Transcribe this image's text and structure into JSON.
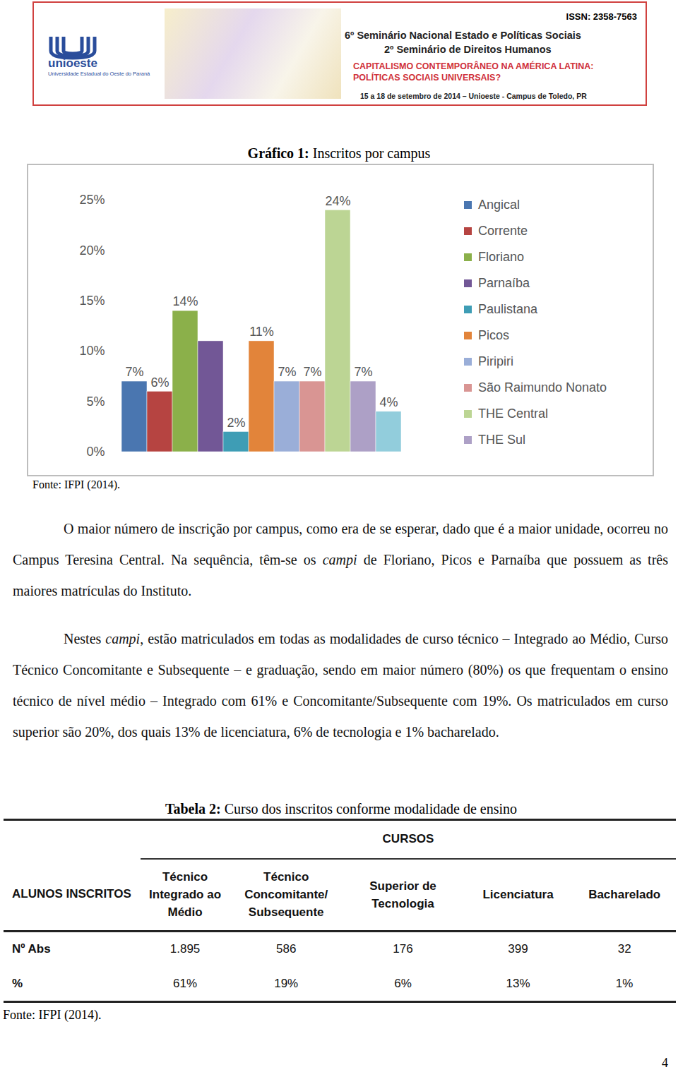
{
  "header": {
    "logo_name": "unioeste",
    "logo_subtitle": "Universidade Estadual do Oeste do Paraná",
    "issn": "ISSN: 2358-7563",
    "lines": [
      "6º Seminário Nacional Estado e Políticas Sociais",
      "2º Seminário de Direitos Humanos"
    ],
    "theme": [
      "CAPITALISMO CONTEMPORÂNEO NA AMÉRICA LATINA:",
      "POLÍTICAS SOCIAIS UNIVERSAIS?"
    ],
    "dates": "15 a 18 de setembro de 2014 – Unioeste - Campus de Toledo, PR"
  },
  "figure": {
    "label": "Gráfico 1:",
    "title": "Inscritos por campus",
    "source": "Fonte: IFPI (2014)."
  },
  "chart_data": {
    "type": "bar",
    "categories": [
      "Angical",
      "Corrente",
      "Floriano",
      "Parnaíba",
      "Paulistana",
      "Picos",
      "Piripiri",
      "São Raimundo Nonato",
      "THE Central",
      "THE Sul",
      null
    ],
    "values": [
      7,
      6,
      14,
      11,
      2,
      11,
      7,
      7,
      24,
      7,
      4
    ],
    "value_labels": [
      "7%",
      "6%",
      "14%",
      null,
      "2%",
      "11%",
      "7%",
      "7%",
      "24%",
      "7%",
      "4%"
    ],
    "colors": [
      "#4a76b0",
      "#b64441",
      "#8bb04a",
      "#725796",
      "#3e9db5",
      "#e2843a",
      "#9aaed8",
      "#d99593",
      "#bcd594",
      "#ada0c6",
      "#92cddc"
    ],
    "ylim": [
      0,
      25
    ],
    "yticks": [
      {
        "value": 0,
        "label": "0%"
      },
      {
        "value": 5,
        "label": "5%"
      },
      {
        "value": 10,
        "label": "10%"
      },
      {
        "value": 15,
        "label": "15%"
      },
      {
        "value": 20,
        "label": "20%"
      },
      {
        "value": 25,
        "label": "25%"
      }
    ],
    "data_labels": true,
    "grid": false,
    "legend": "right"
  },
  "paragraphs": [
    [
      {
        "text": "O maior número de inscrição por campus, como era de se esperar, dado que é a maior unidade, ocorreu no Campus Teresina Central. Na sequência, têm-se os "
      },
      {
        "text": "campi",
        "italic": true
      },
      {
        "text": " de Floriano, Picos e Parnaíba que possuem as três maiores matrículas do Instituto."
      }
    ],
    [
      {
        "text": "Nestes "
      },
      {
        "text": "campi",
        "italic": true
      },
      {
        "text": ", estão matriculados em todas as modalidades de curso técnico – Integrado ao Médio, Curso Técnico Concomitante e Subsequente – e graduação, sendo em maior número (80%) os que frequentam o ensino técnico de nível médio – Integrado com 61% e Concomitante/Subsequente com 19%. Os matriculados em curso superior são 20%, dos quais 13% de licenciatura, 6% de tecnologia e 1% bacharelado."
      }
    ]
  ],
  "table": {
    "label": "Tabela 2:",
    "title": "Curso dos inscritos conforme modalidade de ensino",
    "group_header": "CURSOS",
    "row_header": "ALUNOS INSCRITOS",
    "columns": [
      "Técnico Integrado ao Médio",
      "Técnico Concomitante/ Subsequente",
      "Superior de Tecnologia",
      "Licenciatura",
      "Bacharelado"
    ],
    "rows": [
      [
        "Nº Abs",
        "1.895",
        "586",
        "176",
        "399",
        "32"
      ],
      [
        "%",
        "61%",
        "19%",
        "6%",
        "13%",
        "1%"
      ]
    ],
    "source": "Fonte: IFPI (2014)."
  },
  "page_number": "4"
}
